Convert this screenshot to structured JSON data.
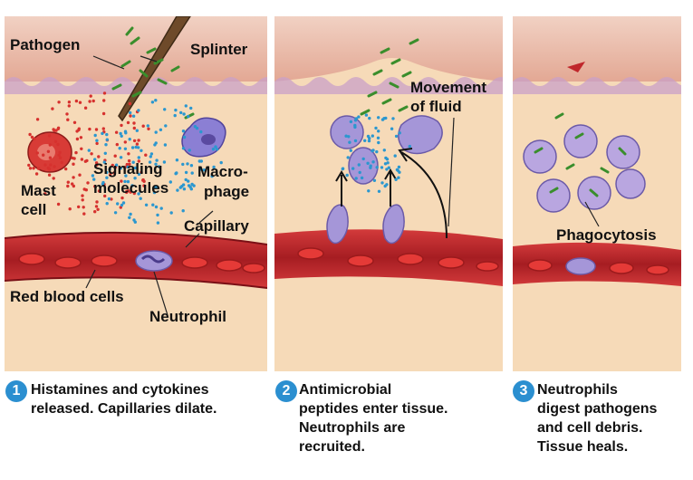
{
  "colors": {
    "tissue": "#f6d9b6",
    "skin": "#e9b7a0",
    "capillary": "#c0262b",
    "pathogen": "#5dbb46",
    "signal_red": "#d6312e",
    "signal_blue": "#2b97cf",
    "cell_purple": "#8d7ac4",
    "step_badge": "#2b8fd0"
  },
  "panel1": {
    "labels": {
      "pathogen": "Pathogen",
      "splinter": "Splinter",
      "signaling": "Signaling",
      "molecules": "molecules",
      "macro": "Macro-",
      "phage": "phage",
      "mast": "Mast",
      "cell": "cell",
      "capillary": "Capillary",
      "rbc": "Red blood cells",
      "neutrophil": "Neutrophil"
    }
  },
  "panel2": {
    "labels": {
      "movement": "Movement",
      "of_fluid": "of fluid"
    }
  },
  "panel3": {
    "labels": {
      "phagocytosis": "Phagocytosis"
    }
  },
  "captions": [
    {
      "step": "1",
      "lines": [
        "Histamines and cytokines",
        "released. Capillaries dilate."
      ]
    },
    {
      "step": "2",
      "lines": [
        "Antimicrobial",
        "peptides enter tissue.",
        "Neutrophils are",
        "recruited."
      ]
    },
    {
      "step": "3",
      "lines": [
        "Neutrophils",
        "digest pathogens",
        "and cell debris.",
        "Tissue heals."
      ]
    }
  ],
  "icons": [
    "splinter-icon",
    "mast-cell-icon",
    "macrophage-icon",
    "neutrophil-icon",
    "red-blood-cell-icon",
    "pathogen-icon"
  ]
}
